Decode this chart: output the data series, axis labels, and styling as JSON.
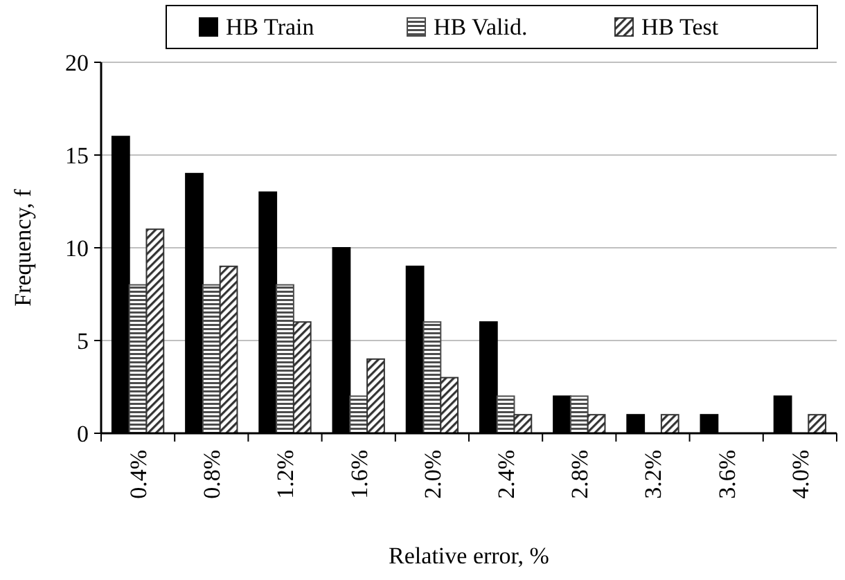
{
  "chart_data": {
    "type": "bar",
    "xlabel": "Relative error, %",
    "ylabel": "Frequency, f",
    "categories": [
      "0.4%",
      "0.8%",
      "1.2%",
      "1.6%",
      "2.0%",
      "2.4%",
      "2.8%",
      "3.2%",
      "3.6%",
      "4.0%"
    ],
    "series": [
      {
        "name": "HB Train",
        "color": "#000000",
        "values": [
          16,
          14,
          13,
          10,
          9,
          6,
          2,
          1,
          1,
          2
        ]
      },
      {
        "name": "HB Valid.",
        "color": "#4d4d4d",
        "values": [
          8,
          8,
          8,
          2,
          6,
          2,
          2,
          0,
          0,
          0
        ]
      },
      {
        "name": "HB Test",
        "color": "#333333",
        "values": [
          11,
          9,
          6,
          4,
          3,
          1,
          1,
          1,
          0,
          1
        ]
      }
    ],
    "ylim": [
      0,
      20
    ],
    "yticks": [
      0,
      5,
      10,
      15,
      20
    ],
    "grid": "y",
    "legend": "top"
  }
}
